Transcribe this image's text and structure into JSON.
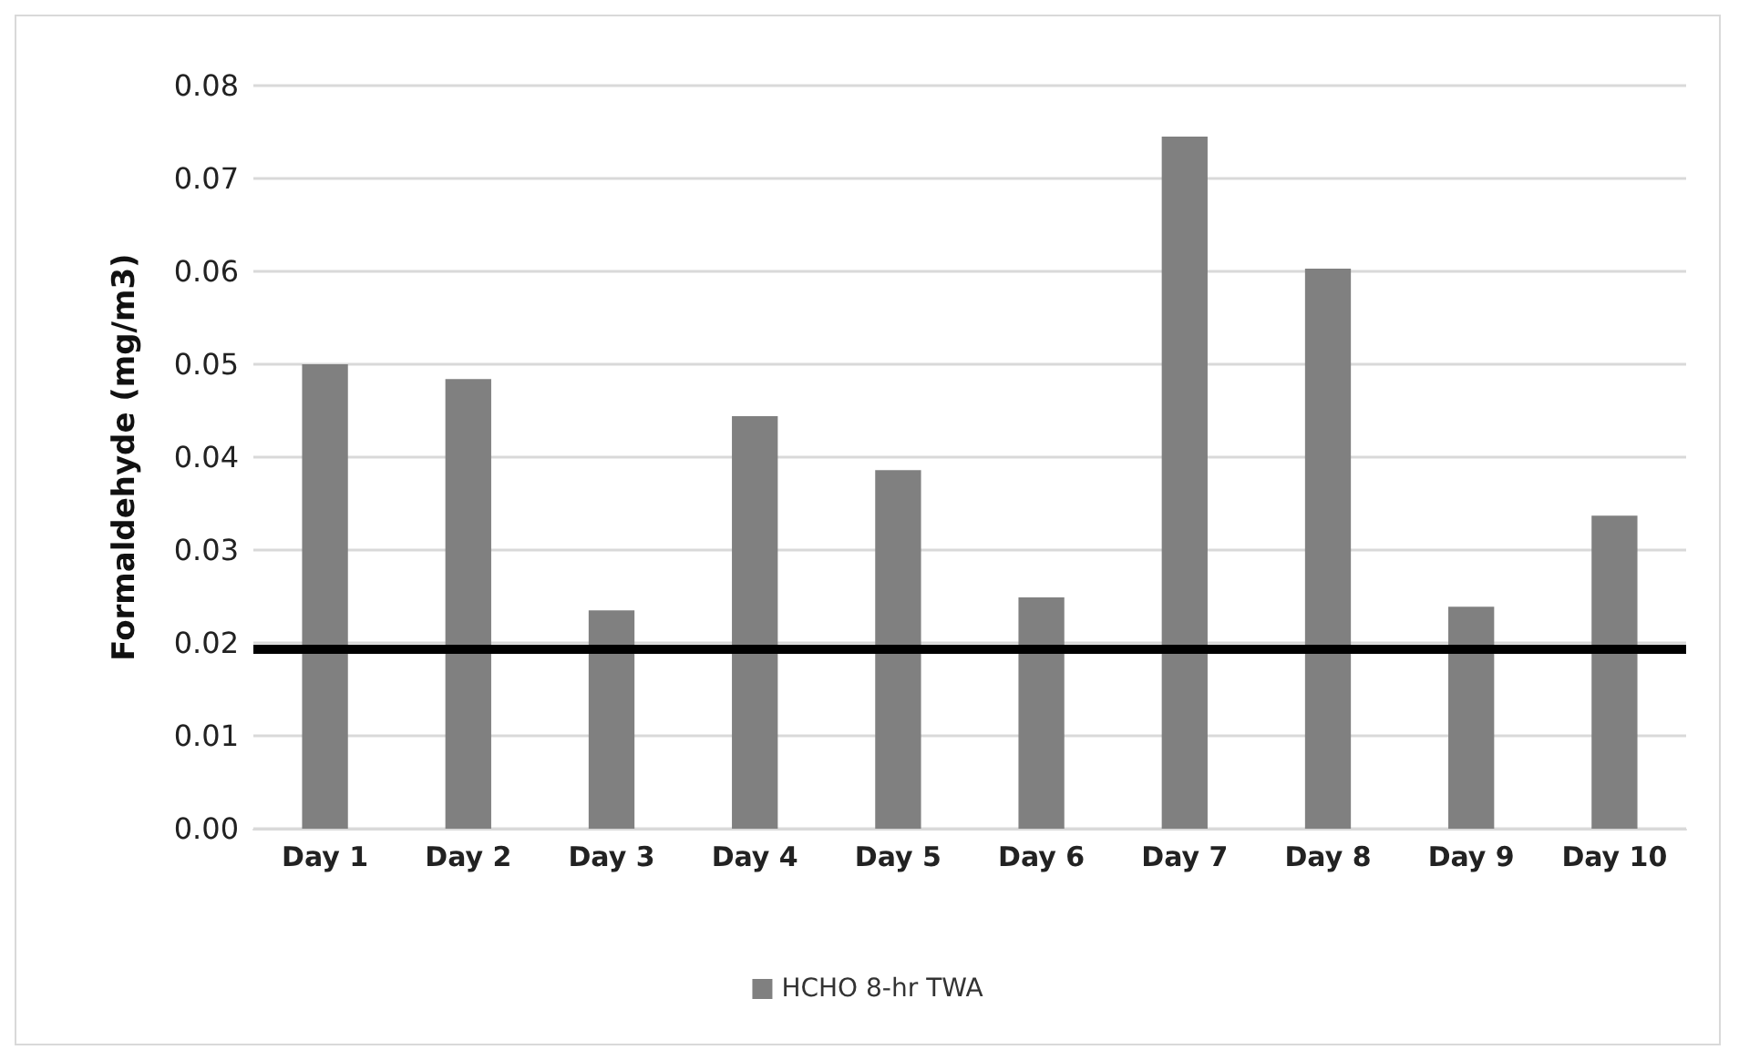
{
  "chart_data": {
    "type": "bar",
    "ylabel": "Formaldehyde (mg/m3)",
    "categories": [
      "Day 1",
      "Day 2",
      "Day 3",
      "Day 4",
      "Day 5",
      "Day 6",
      "Day 7",
      "Day 8",
      "Day 9",
      "Day 10"
    ],
    "series": [
      {
        "name": "HCHO 8-hr TWA",
        "color": "#808080",
        "values": [
          0.05,
          0.0484,
          0.0235,
          0.0444,
          0.0386,
          0.0249,
          0.0745,
          0.0603,
          0.0239,
          0.0337
        ]
      }
    ],
    "ylim": [
      0,
      0.08
    ],
    "yticks": [
      {
        "value": 0,
        "label": "0.00"
      },
      {
        "value": 0.01,
        "label": "0.01"
      },
      {
        "value": 0.02,
        "label": "0.02"
      },
      {
        "value": 0.03,
        "label": "0.03"
      },
      {
        "value": 0.04,
        "label": "0.04"
      },
      {
        "value": 0.05,
        "label": "0.05"
      },
      {
        "value": 0.06,
        "label": "0.06"
      },
      {
        "value": 0.07,
        "label": "0.07"
      },
      {
        "value": 0.08,
        "label": "0.08"
      }
    ],
    "ref_lines": [
      {
        "axis": "y",
        "value": 0.0194,
        "color": "#000000"
      }
    ],
    "grid": "y",
    "legend": "bottom"
  }
}
